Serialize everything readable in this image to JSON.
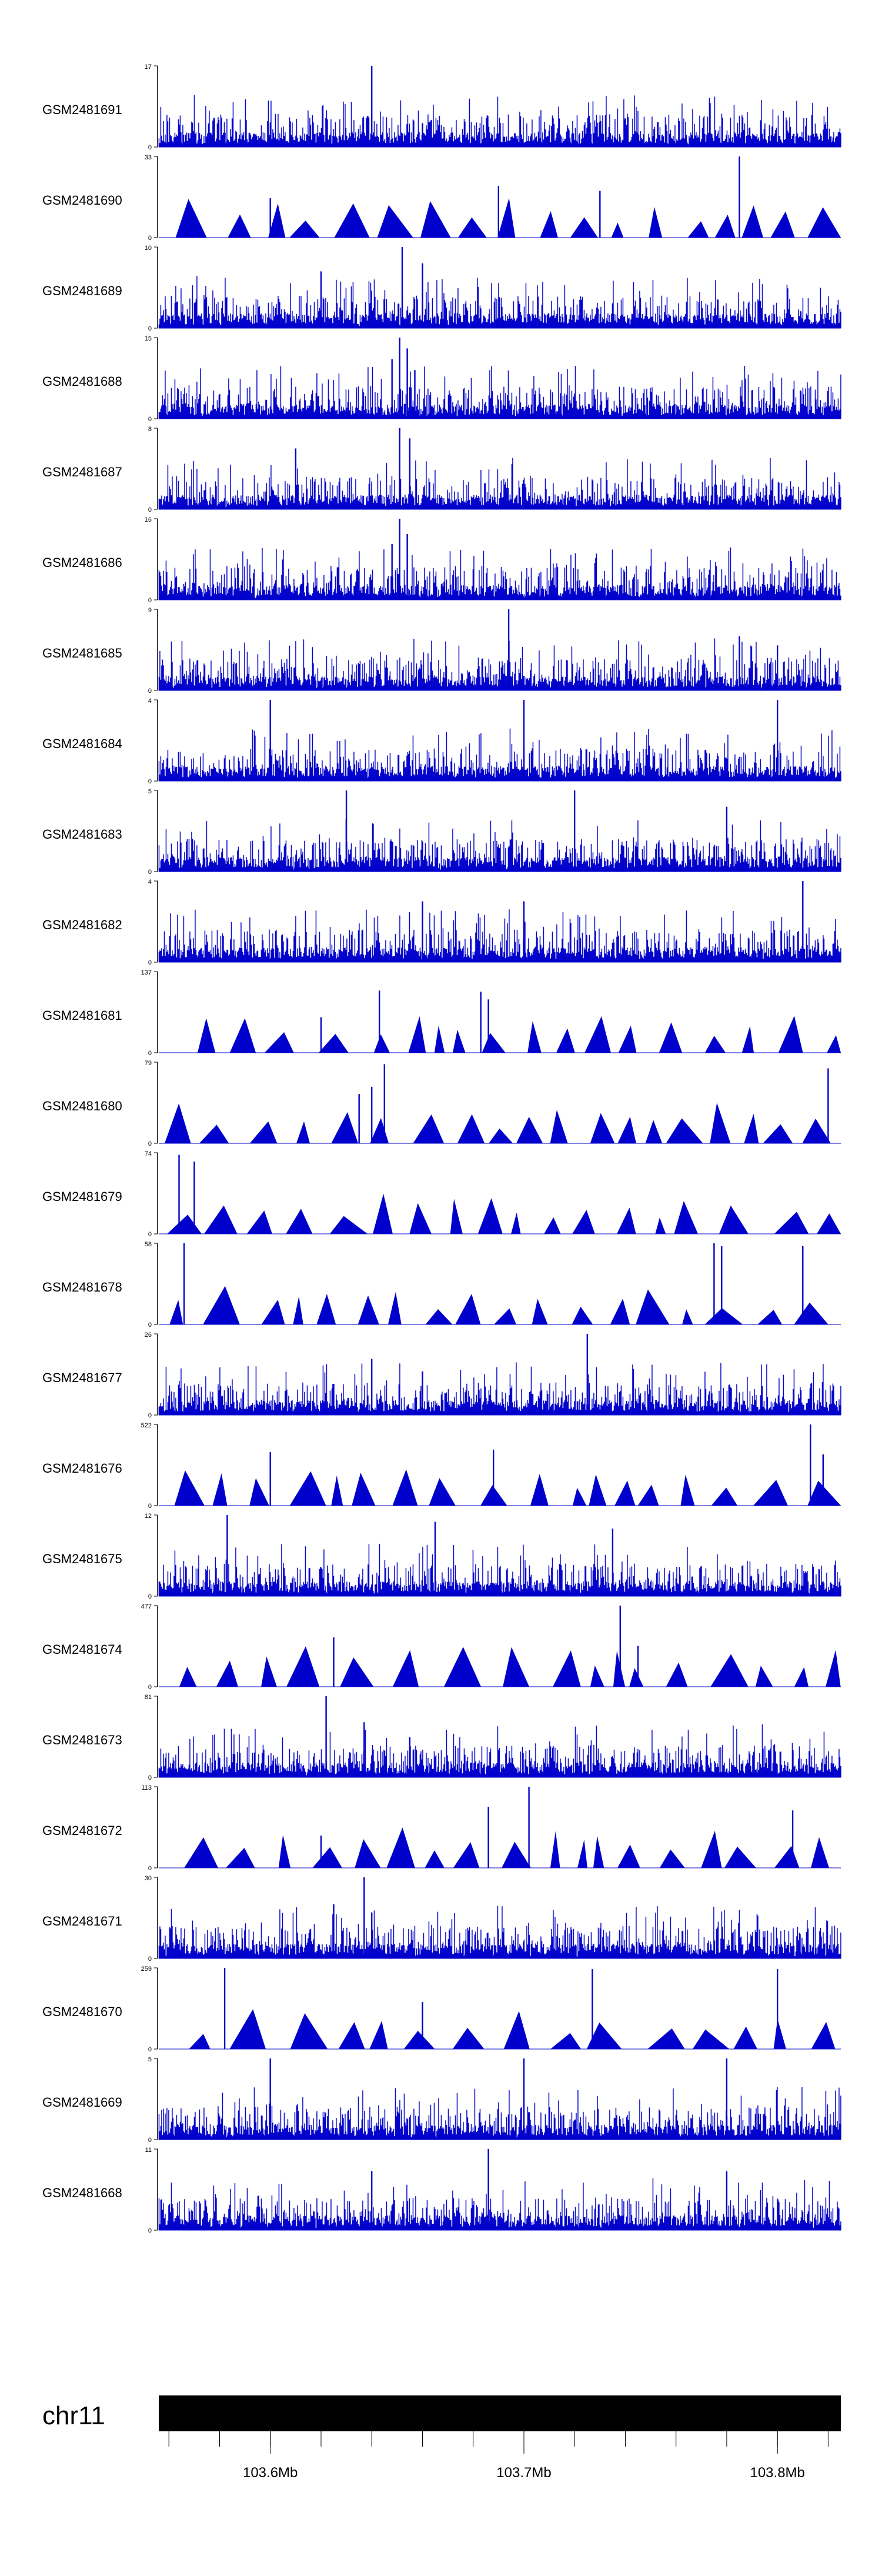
{
  "chart_data": {
    "type": "area",
    "description_unit": "genomic position (Mb) vs coverage",
    "xrange_mb": [
      103.556,
      103.825
    ],
    "chromosome": {
      "name": "chr11",
      "ticks": [
        {
          "pos": 103.6,
          "label": "103.6Mb"
        },
        {
          "pos": 103.7,
          "label": "103.7Mb"
        },
        {
          "pos": 103.8,
          "label": "103.8Mb"
        }
      ],
      "minor_tick_step": 0.02
    },
    "tracks": [
      {
        "label": "GSM2481691",
        "ymax": 17,
        "mode": "dense",
        "peaks": [
          [
            103.64,
            17
          ],
          [
            103.585,
            6
          ],
          [
            103.74,
            6
          ],
          [
            103.66,
            5
          ]
        ]
      },
      {
        "label": "GSM2481690",
        "ymax": 33,
        "mode": "sparse",
        "peaks": [
          [
            103.785,
            33
          ],
          [
            103.69,
            21
          ],
          [
            103.73,
            19
          ],
          [
            103.6,
            16
          ]
        ]
      },
      {
        "label": "GSM2481689",
        "ymax": 10,
        "mode": "dense",
        "peaks": [
          [
            103.652,
            10
          ],
          [
            103.66,
            8
          ],
          [
            103.62,
            7
          ]
        ]
      },
      {
        "label": "GSM2481688",
        "ymax": 15,
        "mode": "dense",
        "peaks": [
          [
            103.651,
            15
          ],
          [
            103.654,
            13
          ],
          [
            103.648,
            11
          ],
          [
            103.657,
            9
          ]
        ]
      },
      {
        "label": "GSM2481687",
        "ymax": 8,
        "mode": "dense",
        "peaks": [
          [
            103.651,
            8
          ],
          [
            103.655,
            7
          ],
          [
            103.61,
            6
          ]
        ]
      },
      {
        "label": "GSM2481686",
        "ymax": 16,
        "mode": "dense",
        "peaks": [
          [
            103.651,
            16
          ],
          [
            103.654,
            13
          ],
          [
            103.648,
            11
          ]
        ]
      },
      {
        "label": "GSM2481685",
        "ymax": 9,
        "mode": "dense",
        "peaks": [
          [
            103.694,
            9
          ],
          [
            103.785,
            6
          ],
          [
            103.8,
            5
          ]
        ]
      },
      {
        "label": "GSM2481684",
        "ymax": 4,
        "mode": "dense",
        "peaks": [
          [
            103.6,
            4
          ],
          [
            103.7,
            4
          ],
          [
            103.8,
            4
          ]
        ]
      },
      {
        "label": "GSM2481683",
        "ymax": 5,
        "mode": "dense",
        "peaks": [
          [
            103.63,
            5
          ],
          [
            103.72,
            5
          ],
          [
            103.78,
            4
          ]
        ]
      },
      {
        "label": "GSM2481682",
        "ymax": 4,
        "mode": "dense",
        "peaks": [
          [
            103.81,
            4
          ],
          [
            103.66,
            3
          ],
          [
            103.7,
            3
          ]
        ]
      },
      {
        "label": "GSM2481681",
        "ymax": 137,
        "mode": "sparse",
        "peaks": [
          [
            103.643,
            105
          ],
          [
            103.683,
            103
          ],
          [
            103.686,
            90
          ],
          [
            103.62,
            60
          ]
        ]
      },
      {
        "label": "GSM2481680",
        "ymax": 79,
        "mode": "sparse",
        "peaks": [
          [
            103.645,
            77
          ],
          [
            103.82,
            73
          ],
          [
            103.64,
            55
          ],
          [
            103.635,
            48
          ]
        ]
      },
      {
        "label": "GSM2481679",
        "ymax": 74,
        "mode": "sparse",
        "peaks": [
          [
            103.564,
            72
          ],
          [
            103.57,
            66
          ]
        ]
      },
      {
        "label": "GSM2481678",
        "ymax": 58,
        "mode": "sparse",
        "peaks": [
          [
            103.566,
            58
          ],
          [
            103.775,
            58
          ],
          [
            103.778,
            56
          ],
          [
            103.81,
            56
          ]
        ]
      },
      {
        "label": "GSM2481677",
        "ymax": 26,
        "mode": "dense",
        "peaks": [
          [
            103.725,
            26
          ],
          [
            103.64,
            18
          ],
          [
            103.66,
            14
          ],
          [
            103.625,
            10
          ]
        ]
      },
      {
        "label": "GSM2481676",
        "ymax": 522,
        "mode": "sparse",
        "peaks": [
          [
            103.813,
            522
          ],
          [
            103.818,
            330
          ],
          [
            103.6,
            345
          ],
          [
            103.688,
            360
          ]
        ]
      },
      {
        "label": "GSM2481675",
        "ymax": 12,
        "mode": "dense",
        "peaks": [
          [
            103.583,
            12
          ],
          [
            103.665,
            11
          ],
          [
            103.735,
            10
          ]
        ]
      },
      {
        "label": "GSM2481674",
        "ymax": 477,
        "mode": "sparse",
        "peaks": [
          [
            103.738,
            477
          ],
          [
            103.745,
            240
          ],
          [
            103.625,
            290
          ]
        ]
      },
      {
        "label": "GSM2481673",
        "ymax": 81,
        "mode": "dense",
        "peaks": [
          [
            103.622,
            81
          ],
          [
            103.637,
            55
          ],
          [
            103.655,
            40
          ]
        ]
      },
      {
        "label": "GSM2481672",
        "ymax": 113,
        "mode": "sparse",
        "peaks": [
          [
            103.702,
            113
          ],
          [
            103.686,
            85
          ],
          [
            103.806,
            80
          ],
          [
            103.62,
            45
          ]
        ]
      },
      {
        "label": "GSM2481671",
        "ymax": 30,
        "mode": "dense",
        "peaks": [
          [
            103.637,
            30
          ],
          [
            103.625,
            20
          ],
          [
            103.64,
            17
          ]
        ]
      },
      {
        "label": "GSM2481670",
        "ymax": 259,
        "mode": "sparse",
        "peaks": [
          [
            103.582,
            259
          ],
          [
            103.727,
            255
          ],
          [
            103.8,
            255
          ],
          [
            103.66,
            150
          ]
        ]
      },
      {
        "label": "GSM2481669",
        "ymax": 5,
        "mode": "dense",
        "peaks": [
          [
            103.6,
            5
          ],
          [
            103.7,
            5
          ],
          [
            103.78,
            5
          ]
        ]
      },
      {
        "label": "GSM2481668",
        "ymax": 11,
        "mode": "dense",
        "peaks": [
          [
            103.686,
            11
          ],
          [
            103.64,
            8
          ],
          [
            103.78,
            8
          ]
        ]
      }
    ]
  }
}
